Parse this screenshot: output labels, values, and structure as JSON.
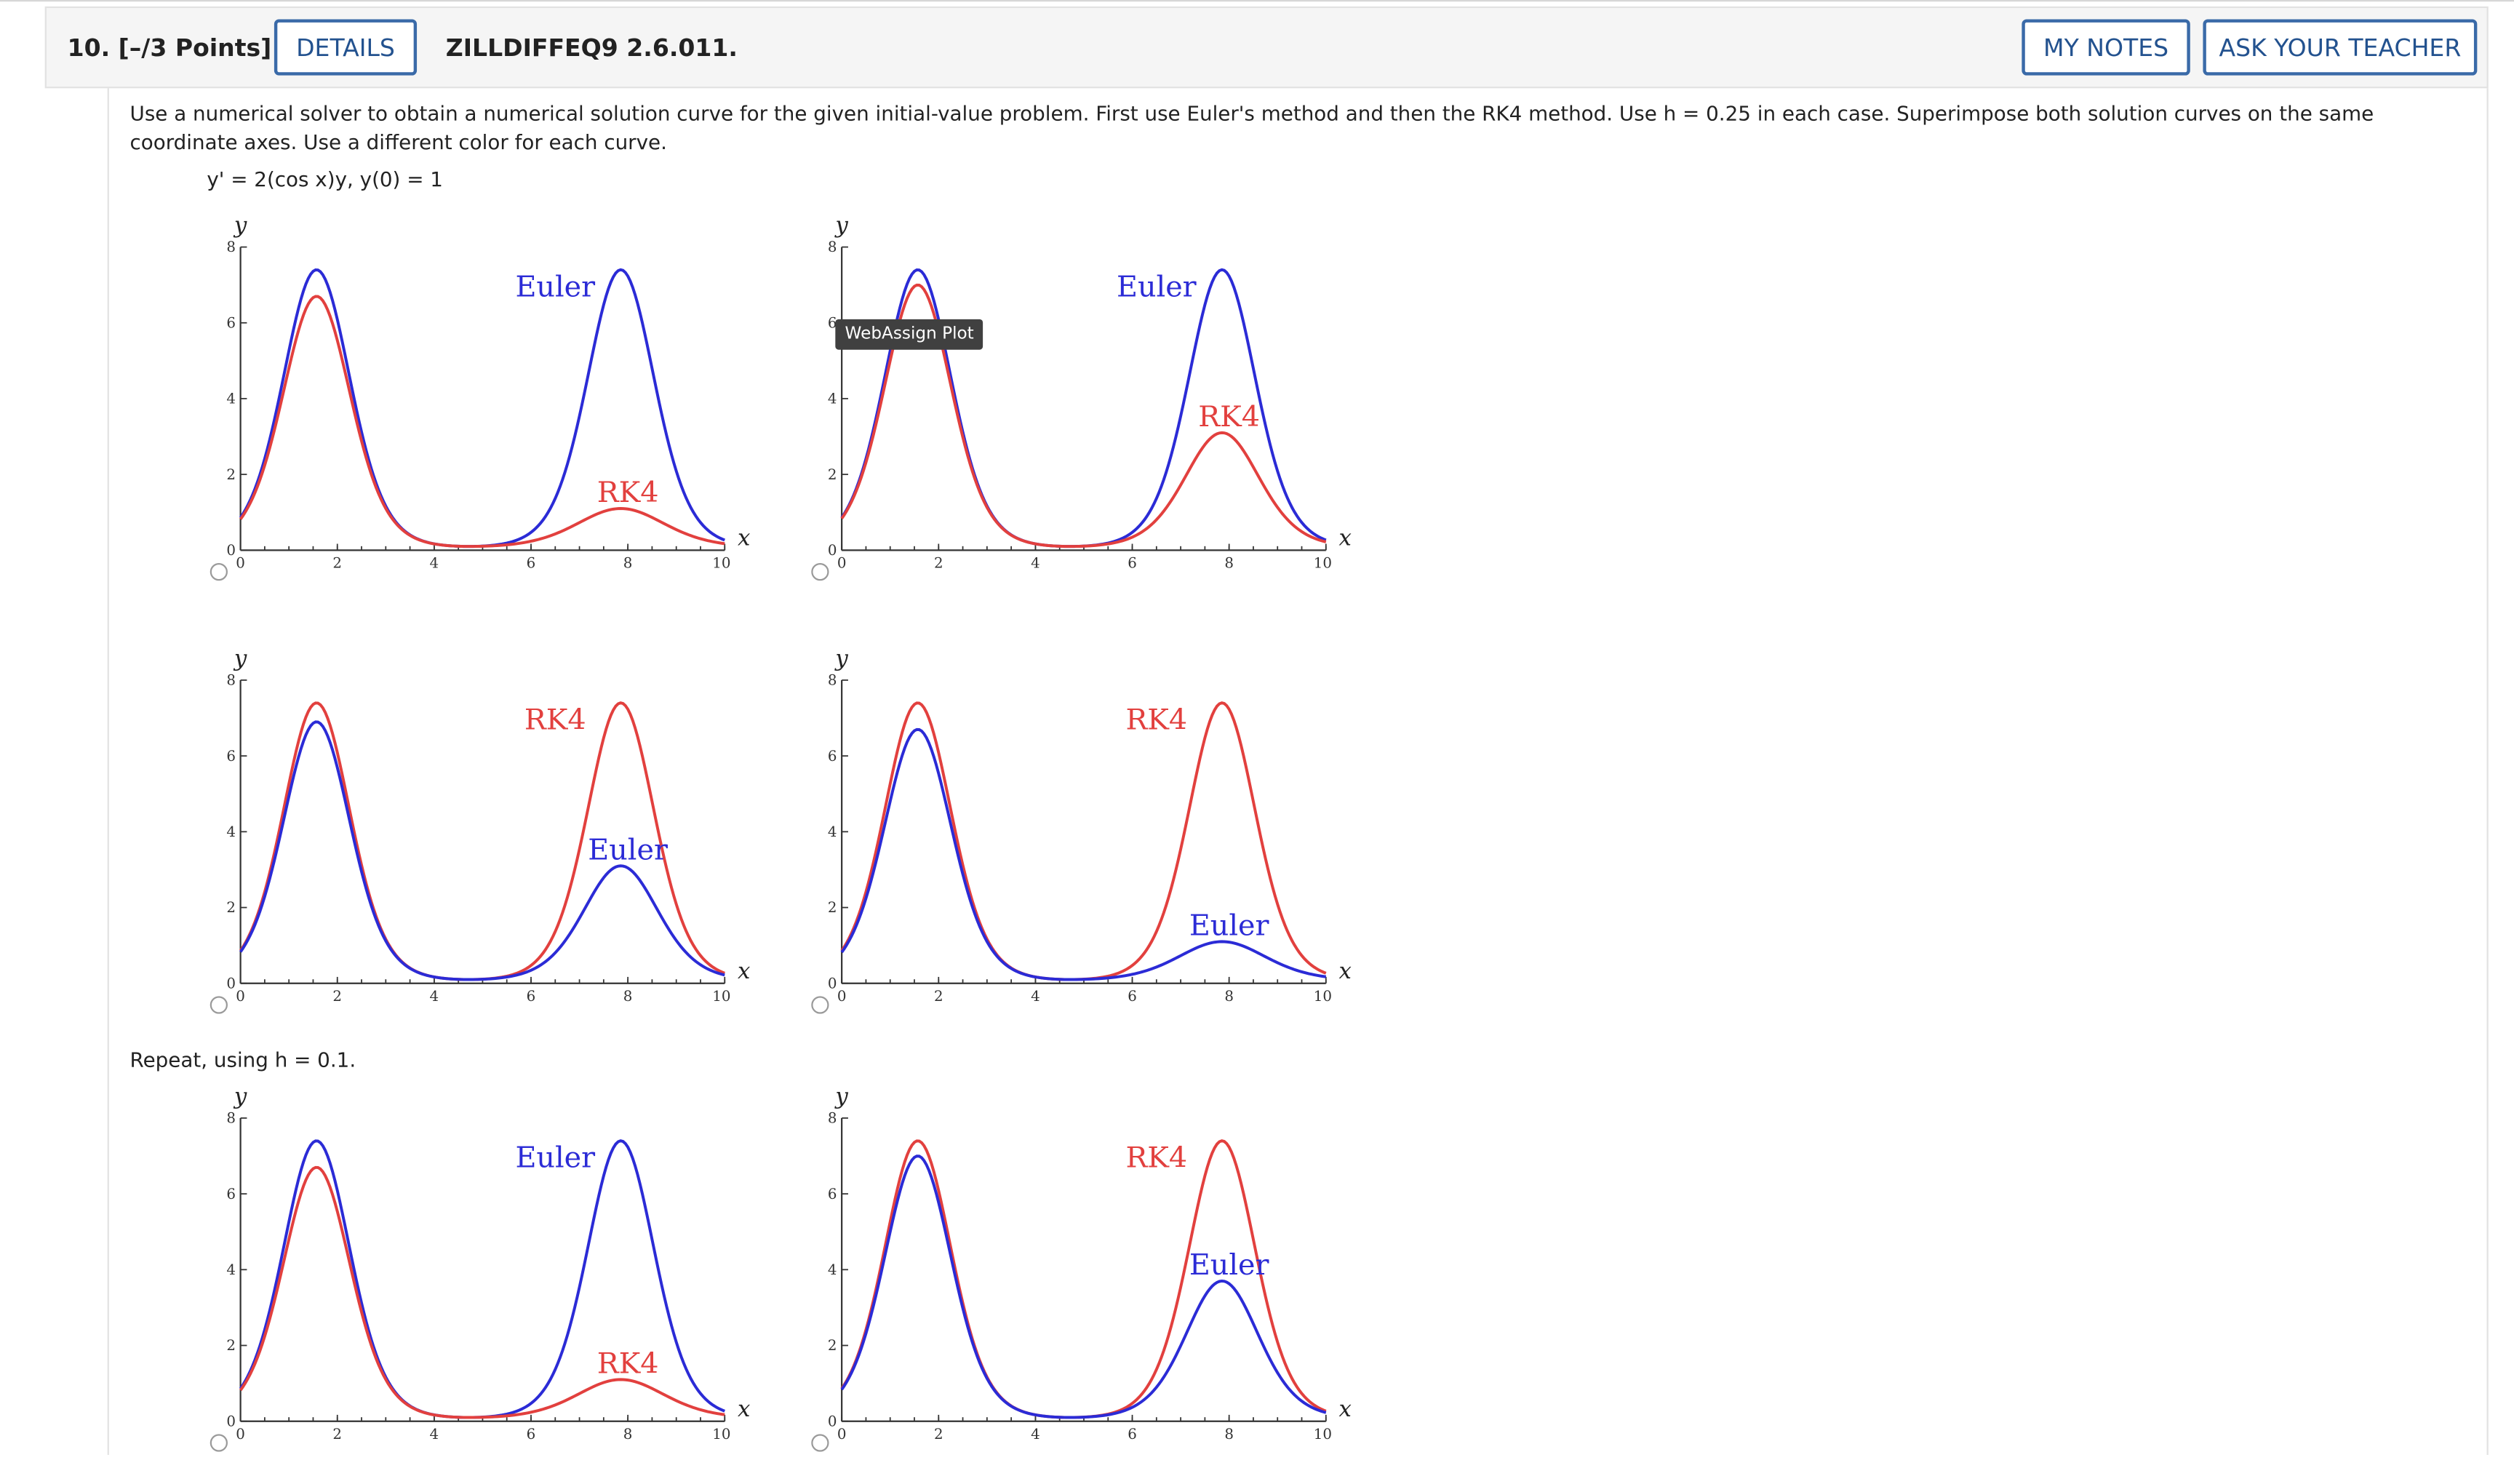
{
  "header": {
    "question_number": "10.  [–/3 Points]",
    "details_label": "DETAILS",
    "question_id": "ZILLDIFFEQ9 2.6.011.",
    "my_notes_label": "MY NOTES",
    "ask_teacher_label": "ASK YOUR TEACHER"
  },
  "body": {
    "prompt": "Use a numerical solver to obtain a numerical solution curve for the given initial-value problem. First use Euler's method and then the RK4 method. Use h = 0.25 in each case. Superimpose both solution curves on the same coordinate axes. Use a different color for each curve.",
    "equation": "y' = 2(cos x)y,   y(0) = 1",
    "repeat_text": "Repeat, using h = 0.1.",
    "tooltip": "WebAssign Plot"
  },
  "colors": {
    "euler": "#2b2bd6",
    "rk4": "#e2403e",
    "button": "#3a6aa8"
  },
  "chart_data": [
    {
      "type": "line",
      "xlabel": "x",
      "ylabel": "y",
      "xlim": [
        0,
        10
      ],
      "ylim": [
        0,
        8
      ],
      "xticks": [
        "0",
        "2",
        "4",
        "6",
        "8",
        "10"
      ],
      "yticks": [
        "0",
        "2",
        "4",
        "6",
        "8"
      ],
      "label_top": "Euler",
      "label_bottom": "RK4",
      "series": [
        {
          "name": "Euler",
          "peaks": [
            7.4,
            7.4
          ],
          "valley_min": 0.1
        },
        {
          "name": "RK4",
          "peaks": [
            6.7,
            1.1
          ],
          "valley_min": 0.1
        }
      ]
    },
    {
      "type": "line",
      "xlabel": "x",
      "ylabel": "y",
      "xlim": [
        0,
        10
      ],
      "ylim": [
        0,
        8
      ],
      "xticks": [
        "0",
        "2",
        "4",
        "6",
        "8",
        "10"
      ],
      "yticks": [
        "0",
        "2",
        "4",
        "6",
        "8"
      ],
      "label_top": "Euler",
      "label_bottom": "RK4",
      "series": [
        {
          "name": "Euler",
          "peaks": [
            7.4,
            7.4
          ],
          "valley_min": 0.1
        },
        {
          "name": "RK4",
          "peaks": [
            7.0,
            3.1
          ],
          "valley_min": 0.1
        }
      ]
    },
    {
      "type": "line",
      "xlabel": "x",
      "ylabel": "y",
      "xlim": [
        0,
        10
      ],
      "ylim": [
        0,
        8
      ],
      "xticks": [
        "0",
        "2",
        "4",
        "6",
        "8",
        "10"
      ],
      "yticks": [
        "0",
        "2",
        "4",
        "6",
        "8"
      ],
      "label_top": "RK4",
      "label_bottom": "Euler",
      "series": [
        {
          "name": "RK4",
          "peaks": [
            7.4,
            7.4
          ],
          "valley_min": 0.1
        },
        {
          "name": "Euler",
          "peaks": [
            6.9,
            3.1
          ],
          "valley_min": 0.1
        }
      ]
    },
    {
      "type": "line",
      "xlabel": "x",
      "ylabel": "y",
      "xlim": [
        0,
        10
      ],
      "ylim": [
        0,
        8
      ],
      "xticks": [
        "0",
        "2",
        "4",
        "6",
        "8",
        "10"
      ],
      "yticks": [
        "0",
        "2",
        "4",
        "6",
        "8"
      ],
      "label_top": "RK4",
      "label_bottom": "Euler",
      "series": [
        {
          "name": "RK4",
          "peaks": [
            7.4,
            7.4
          ],
          "valley_min": 0.1
        },
        {
          "name": "Euler",
          "peaks": [
            6.7,
            1.1
          ],
          "valley_min": 0.1
        }
      ]
    },
    {
      "type": "line",
      "xlabel": "x",
      "ylabel": "y",
      "xlim": [
        0,
        10
      ],
      "ylim": [
        0,
        8
      ],
      "xticks": [
        "0",
        "2",
        "4",
        "6",
        "8",
        "10"
      ],
      "yticks": [
        "0",
        "2",
        "4",
        "6",
        "8"
      ],
      "label_top": "Euler",
      "label_bottom": "RK4",
      "series": [
        {
          "name": "Euler",
          "peaks": [
            7.4,
            7.4
          ],
          "valley_min": 0.1
        },
        {
          "name": "RK4",
          "peaks": [
            6.7,
            1.1
          ],
          "valley_min": 0.1
        }
      ]
    },
    {
      "type": "line",
      "xlabel": "x",
      "ylabel": "y",
      "xlim": [
        0,
        10
      ],
      "ylim": [
        0,
        8
      ],
      "xticks": [
        "0",
        "2",
        "4",
        "6",
        "8",
        "10"
      ],
      "yticks": [
        "0",
        "2",
        "4",
        "6",
        "8"
      ],
      "label_top": "RK4",
      "label_bottom": "Euler",
      "series": [
        {
          "name": "RK4",
          "peaks": [
            7.4,
            7.4
          ],
          "valley_min": 0.1
        },
        {
          "name": "Euler",
          "peaks": [
            7.0,
            3.7
          ],
          "valley_min": 0.1
        }
      ]
    }
  ]
}
